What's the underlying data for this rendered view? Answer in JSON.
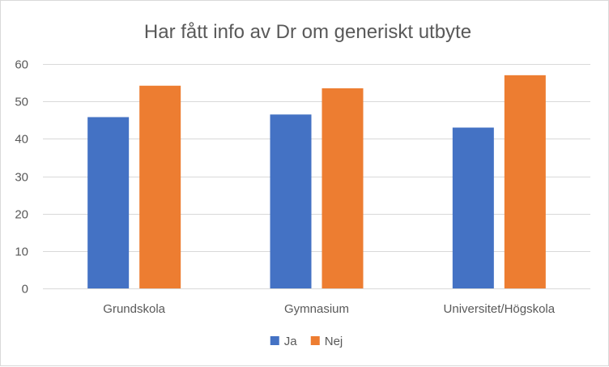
{
  "chart_data": {
    "type": "bar",
    "title": "Har fått info av Dr om generiskt utbyte",
    "xlabel": "",
    "ylabel": "",
    "categories": [
      "Grundskola",
      "Gymnasium",
      "Universitet/Högskola"
    ],
    "series": [
      {
        "name": "Ja",
        "color": "#4472c4",
        "values": [
          45.8,
          46.5,
          43.0
        ]
      },
      {
        "name": "Nej",
        "color": "#ed7d31",
        "values": [
          54.2,
          53.5,
          57.0
        ]
      }
    ],
    "ylim": [
      0,
      60
    ],
    "yticks": [
      0,
      10,
      20,
      30,
      40,
      50,
      60
    ],
    "grid": true,
    "legend_position": "bottom"
  }
}
